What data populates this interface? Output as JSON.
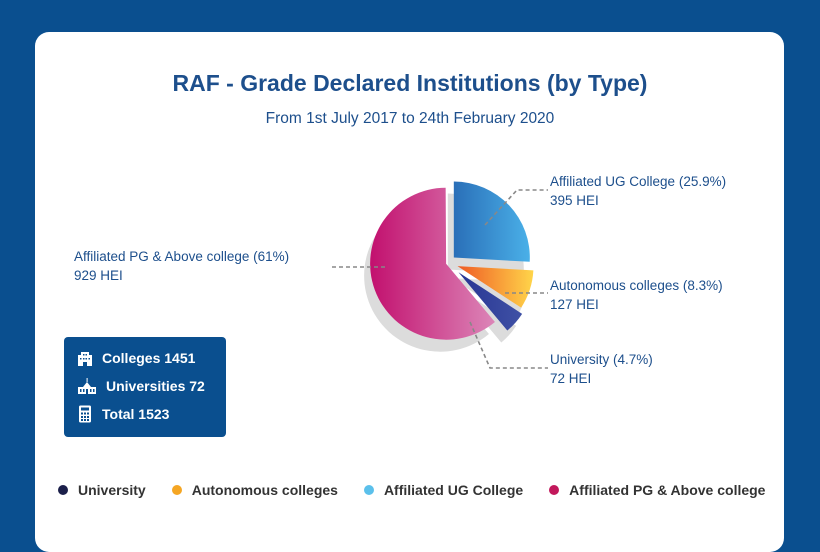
{
  "title": "RAF - Grade Declared Institutions (by Type)",
  "subtitle": "From 1st July 2017 to 24th February 2020",
  "chart_data": {
    "type": "pie",
    "title": "RAF - Grade Declared Institutions (by Type)",
    "subtitle": "From 1st July 2017 to 24th February 2020",
    "legend_position": "bottom",
    "slices": [
      {
        "name": "Affiliated UG College",
        "label": "Affiliated UG College (25.9%)",
        "percent": 25.9,
        "value": 395,
        "value_label": "395 HEI",
        "color": "#3a8fd6"
      },
      {
        "name": "Autonomous colleges",
        "label": "Autonomous colleges (8.3%)",
        "percent": 8.3,
        "value": 127,
        "value_label": "127 HEI",
        "color": "#f5a623"
      },
      {
        "name": "University",
        "label": "University (4.7%)",
        "percent": 4.7,
        "value": 72,
        "value_label": "72 HEI",
        "color": "#2e3a8c"
      },
      {
        "name": "Affiliated PG & Above college",
        "label": "Affiliated PG & Above college (61%)",
        "percent": 61,
        "value": 929,
        "value_label": "929 HEI",
        "color": "#c2185b"
      }
    ]
  },
  "stats": [
    {
      "icon": "building-icon",
      "text": "Colleges 1451"
    },
    {
      "icon": "university-icon",
      "text": "Universities 72"
    },
    {
      "icon": "calculator-icon",
      "text": "Total 1523"
    }
  ],
  "legend": [
    {
      "label": "University",
      "color": "#1b1f4a"
    },
    {
      "label": "Autonomous colleges",
      "color": "#f5a623"
    },
    {
      "label": "Affiliated UG College",
      "color": "#5bc0eb"
    },
    {
      "label": "Affiliated PG & Above college",
      "color": "#c2185b"
    }
  ]
}
